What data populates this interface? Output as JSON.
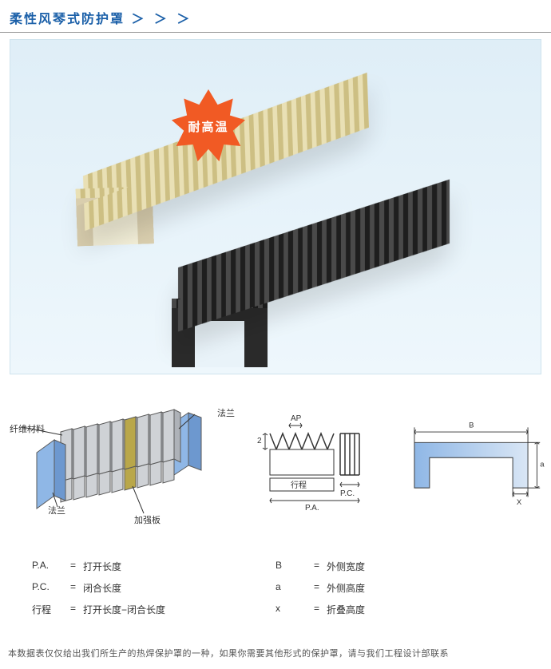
{
  "title": "柔性风琴式防护罩",
  "title_chevrons": "＞ ＞ ＞",
  "badge": {
    "text": "耐高温",
    "fill": "#f15a24"
  },
  "colors": {
    "hero_bg_top": "#dfeef7",
    "hero_bg_bottom": "#eef7fc",
    "header_blue": "#1a5fa8",
    "flange_blue": "#8fb7e6",
    "reinforce_olive": "#b9a74a",
    "plate_grey": "#cfd2d6",
    "plate_grey_dark": "#aeb2b8",
    "stroke": "#5a5a5a"
  },
  "diagram_left": {
    "label_fiber": "纤维材料",
    "label_flange_top": "法兰",
    "label_flange_bottom": "法兰",
    "label_reinforce": "加强板"
  },
  "diagram_mid": {
    "label_ap": "AP",
    "label_two": "2",
    "label_travel": "行程",
    "label_pc": "P.C.",
    "label_pa": "P.A."
  },
  "diagram_right": {
    "label_B": "B",
    "label_a": "a",
    "label_x": "X"
  },
  "legend_left": [
    {
      "k": "P.A.",
      "v": "打开长度"
    },
    {
      "k": "P.C.",
      "v": "闭合长度"
    },
    {
      "k": "行程",
      "v": "打开长度−闭合长度"
    }
  ],
  "legend_right": [
    {
      "k": "B",
      "v": "外侧宽度"
    },
    {
      "k": "a",
      "v": "外侧高度"
    },
    {
      "k": "x",
      "v": "折叠高度"
    }
  ],
  "footnote": "本数据表仅仅给出我们所生产的热焊保护罩的一种，如果你需要其他形式的保护罩，请与我们工程设计部联系"
}
